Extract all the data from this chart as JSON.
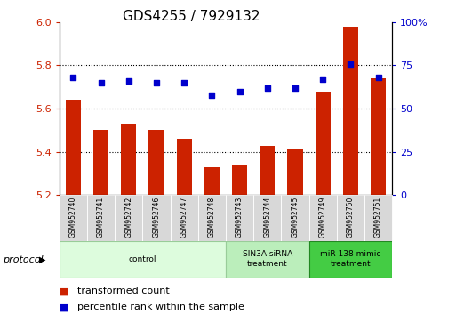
{
  "title": "GDS4255 / 7929132",
  "samples": [
    "GSM952740",
    "GSM952741",
    "GSM952742",
    "GSM952746",
    "GSM952747",
    "GSM952748",
    "GSM952743",
    "GSM952744",
    "GSM952745",
    "GSM952749",
    "GSM952750",
    "GSM952751"
  ],
  "red_values": [
    5.64,
    5.5,
    5.53,
    5.5,
    5.46,
    5.33,
    5.34,
    5.43,
    5.41,
    5.68,
    5.98,
    5.74
  ],
  "blue_values": [
    68,
    65,
    66,
    65,
    65,
    58,
    60,
    62,
    62,
    67,
    76,
    68
  ],
  "ylim_left": [
    5.2,
    6.0
  ],
  "ylim_right": [
    0,
    100
  ],
  "yticks_left": [
    5.2,
    5.4,
    5.6,
    5.8,
    6.0
  ],
  "yticks_right": [
    0,
    25,
    50,
    75,
    100
  ],
  "ytick_labels_right": [
    "0",
    "25",
    "50",
    "75",
    "100%"
  ],
  "bar_color": "#cc2200",
  "dot_color": "#0000cc",
  "protocol_groups": [
    {
      "label": "control",
      "start": 0,
      "end": 5,
      "color": "#ddfcdd",
      "border": "#99cc99"
    },
    {
      "label": "SIN3A siRNA\ntreatment",
      "start": 6,
      "end": 8,
      "color": "#bbeebb",
      "border": "#99cc99"
    },
    {
      "label": "miR-138 mimic\ntreatment",
      "start": 9,
      "end": 11,
      "color": "#44cc44",
      "border": "#228822"
    }
  ],
  "legend_red_label": "transformed count",
  "legend_blue_label": "percentile rank within the sample",
  "protocol_label": "protocol",
  "title_fontsize": 11,
  "sample_fontsize": 5.5,
  "tick_fontsize": 8,
  "legend_fontsize": 8,
  "bar_width": 0.55
}
